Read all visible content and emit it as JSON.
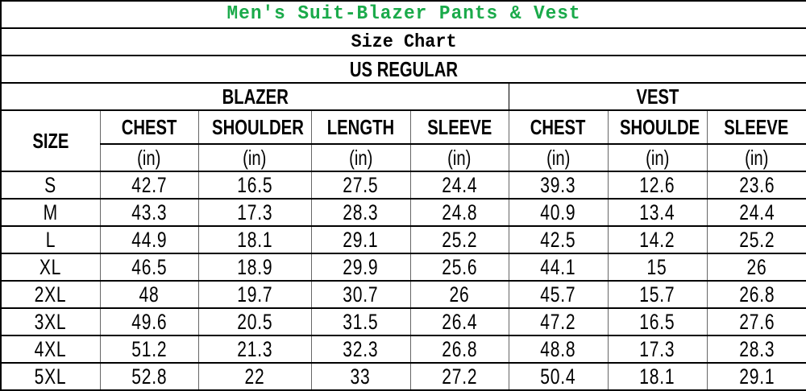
{
  "title": "Men's Suit-Blazer Pants & Vest",
  "subtitle": "Size Chart",
  "region": "US REGULAR",
  "colors": {
    "title": "#1aaa4a"
  },
  "groups": {
    "blazer": "BLAZER",
    "vest": "VEST"
  },
  "size_header": "SIZE",
  "columns": [
    "CHEST",
    "SHOULDER",
    "LENGTH",
    "SLEEVE",
    "CHEST",
    "SHOULDE",
    "SLEEVE"
  ],
  "units": [
    "(in)",
    "(in)",
    "(in)",
    "(in)",
    "(in)",
    "(in)",
    "(in)"
  ],
  "rows": [
    [
      "S",
      "42.7",
      "16.5",
      "27.5",
      "24.4",
      "39.3",
      "12.6",
      "23.6"
    ],
    [
      "M",
      "43.3",
      "17.3",
      "28.3",
      "24.8",
      "40.9",
      "13.4",
      "24.4"
    ],
    [
      "L",
      "44.9",
      "18.1",
      "29.1",
      "25.2",
      "42.5",
      "14.2",
      "25.2"
    ],
    [
      "XL",
      "46.5",
      "18.9",
      "29.9",
      "25.6",
      "44.1",
      "15",
      "26"
    ],
    [
      "2XL",
      "48",
      "19.7",
      "30.7",
      "26",
      "45.7",
      "15.7",
      "26.8"
    ],
    [
      "3XL",
      "49.6",
      "20.5",
      "31.5",
      "26.4",
      "47.2",
      "16.5",
      "27.6"
    ],
    [
      "4XL",
      "51.2",
      "21.3",
      "32.3",
      "26.8",
      "48.8",
      "17.3",
      "28.3"
    ],
    [
      "5XL",
      "52.8",
      "22",
      "33",
      "27.2",
      "50.4",
      "18.1",
      "29.1"
    ]
  ]
}
